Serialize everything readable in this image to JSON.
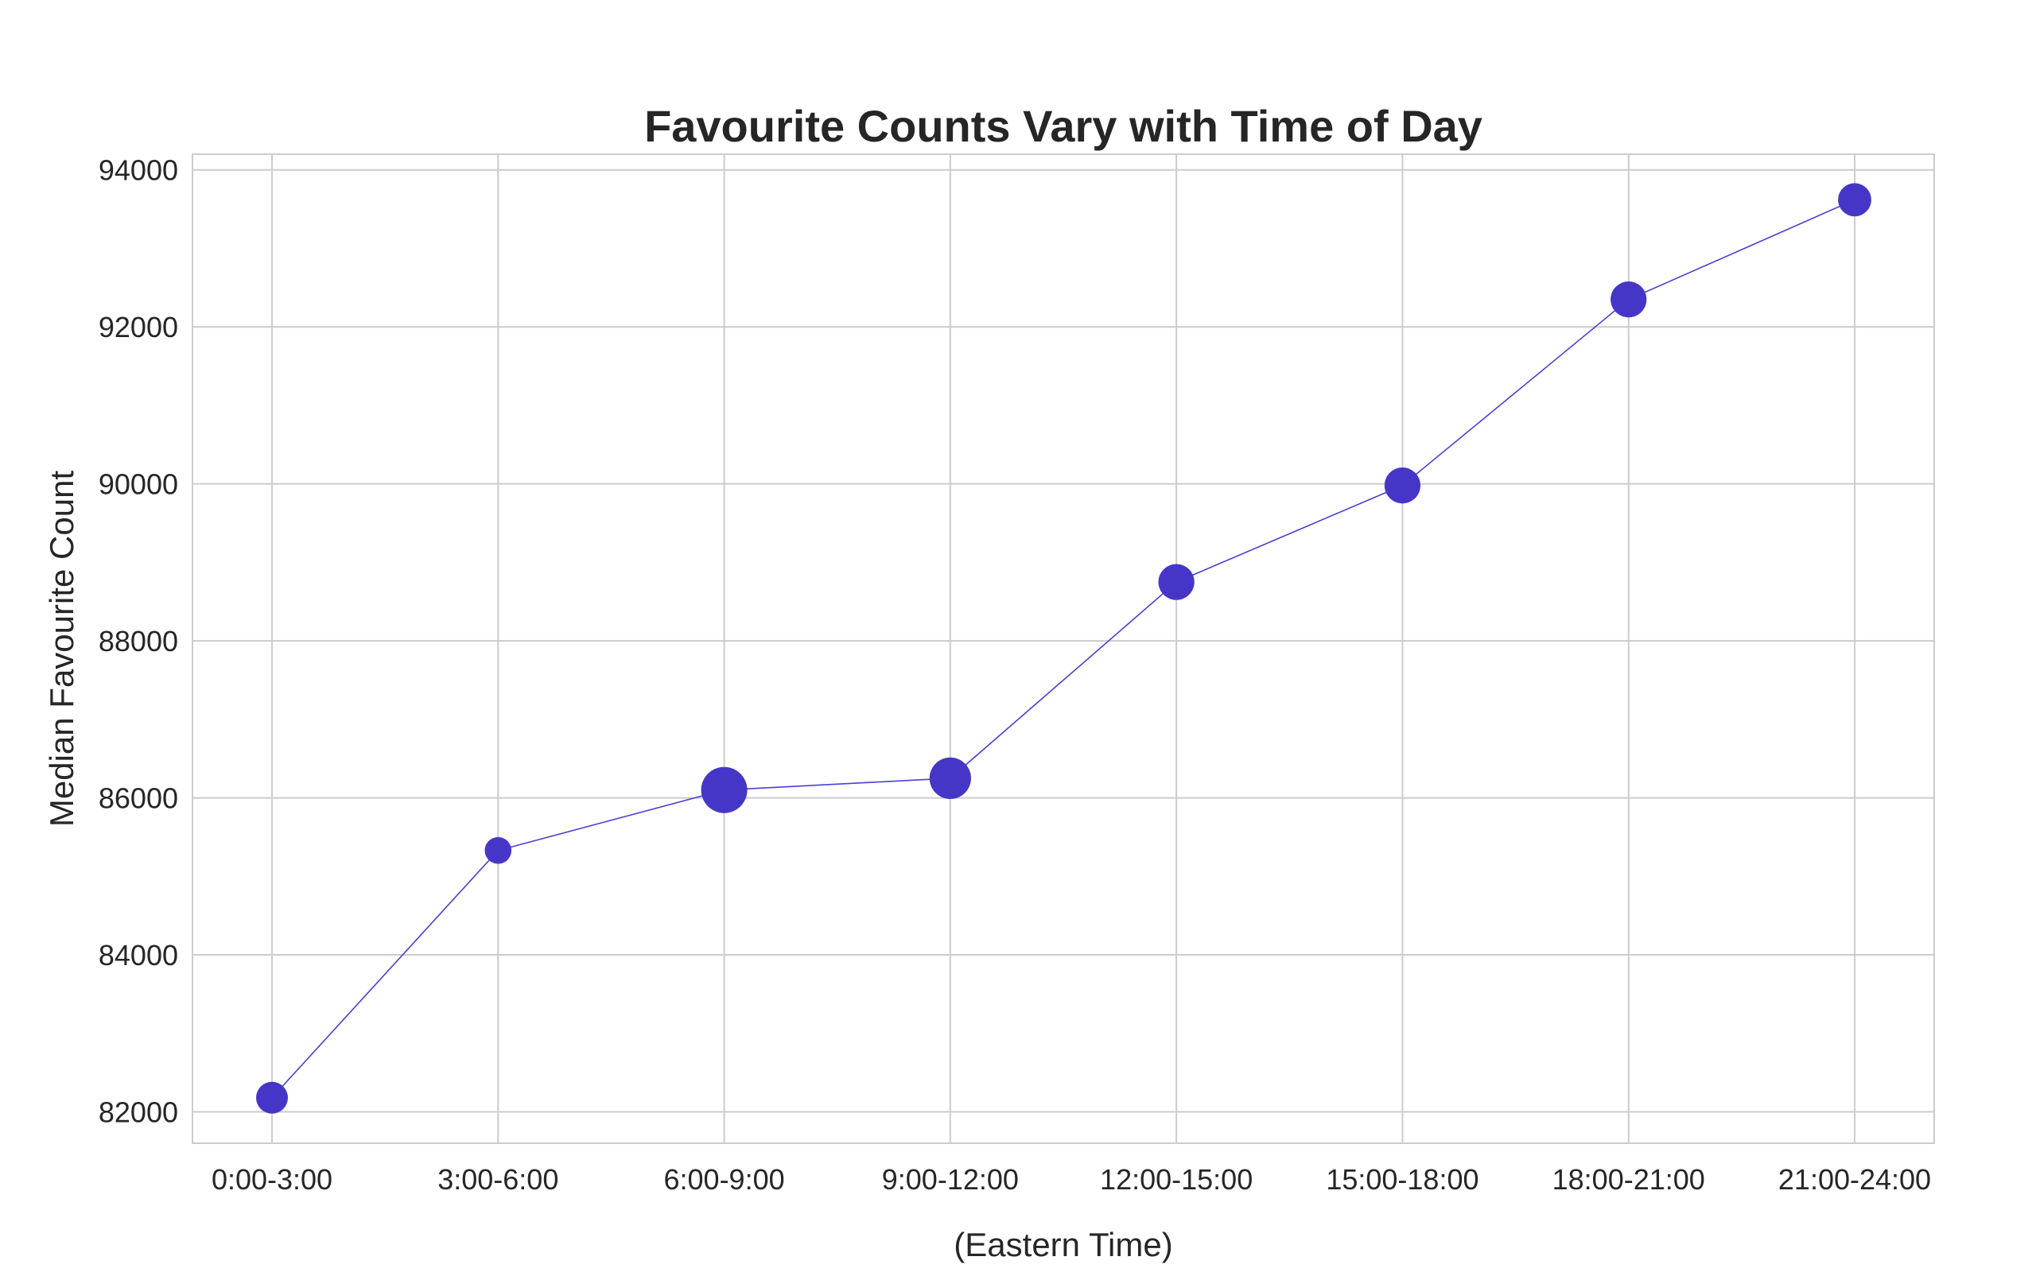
{
  "chart_data": {
    "type": "line",
    "title": "Favourite Counts Vary with Time of Day",
    "xlabel": "(Eastern Time)",
    "ylabel": "Median Favourite Count",
    "categories": [
      "0:00-3:00",
      "3:00-6:00",
      "6:00-9:00",
      "9:00-12:00",
      "12:00-15:00",
      "15:00-18:00",
      "18:00-21:00",
      "21:00-24:00"
    ],
    "series": [
      {
        "values": [
          82180,
          85330,
          86100,
          86250,
          88750,
          89980,
          92350,
          93620
        ],
        "marker_size_relative": [
          0.35,
          0.2,
          1.0,
          0.75,
          0.5,
          0.5,
          0.5,
          0.4
        ]
      }
    ],
    "ylim": [
      81600,
      94200
    ],
    "yticks": [
      82000,
      84000,
      86000,
      88000,
      90000,
      92000,
      94000
    ],
    "grid": true,
    "colors": {
      "line": "#4a3fd6",
      "marker": "#4636c8",
      "grid": "#cccccc",
      "text": "#262626"
    }
  }
}
